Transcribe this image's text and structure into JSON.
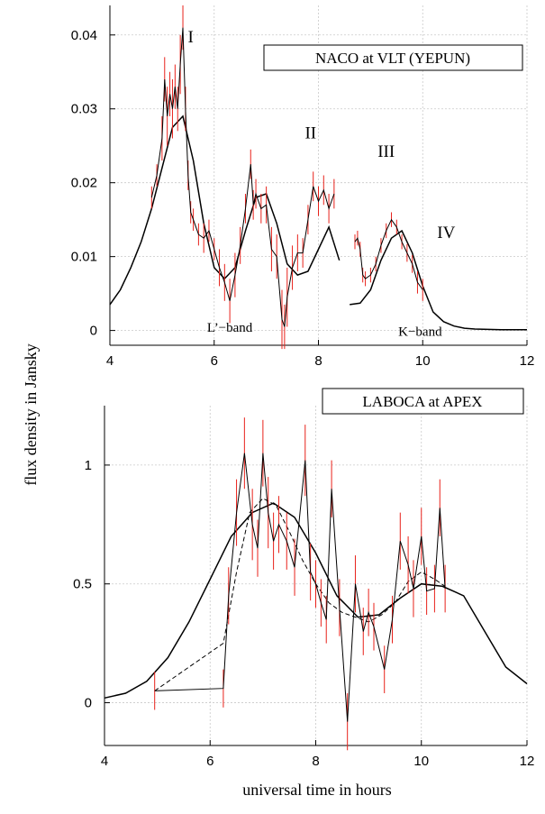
{
  "figure": {
    "ylabel": "flux density in Jansky",
    "xlabel": "universal time in hours"
  },
  "chart_data": [
    {
      "type": "line",
      "legend_box": "NACO at VLT (YEPUN)",
      "xlim": [
        4,
        12
      ],
      "ylim": [
        -0.002,
        0.044
      ],
      "xticks": [
        4,
        6,
        8,
        10,
        12
      ],
      "yticks": [
        0,
        0.01,
        0.02,
        0.03,
        0.04
      ],
      "xtick_labels": [
        "4",
        "6",
        "8",
        "10",
        "12"
      ],
      "ytick_labels": [
        "0",
        "0.01",
        "0.02",
        "0.03",
        "0.04"
      ],
      "grid": true,
      "annotations": [
        {
          "text": "I",
          "x": 5.55,
          "y": 0.039
        },
        {
          "text": "II",
          "x": 7.85,
          "y": 0.026
        },
        {
          "text": "III",
          "x": 9.3,
          "y": 0.0235
        },
        {
          "text": "IV",
          "x": 10.45,
          "y": 0.0125
        },
        {
          "text": "L’−band",
          "x": 6.3,
          "y": -0.0002
        },
        {
          "text": "K−band",
          "x": 9.95,
          "y": -0.0007
        }
      ],
      "series": [
        {
          "role": "model",
          "color": "#000000",
          "x": [
            4.0,
            4.2,
            4.4,
            4.6,
            4.8,
            5.0,
            5.2,
            5.4,
            5.6,
            5.8,
            6.0,
            6.2,
            6.4,
            6.6,
            6.8,
            7.0,
            7.2,
            7.4,
            7.6,
            7.8,
            8.0,
            8.2,
            8.4
          ],
          "y": [
            0.0035,
            0.0055,
            0.0085,
            0.012,
            0.0165,
            0.022,
            0.0275,
            0.029,
            0.023,
            0.0145,
            0.0085,
            0.007,
            0.0085,
            0.0135,
            0.018,
            0.0185,
            0.0145,
            0.009,
            0.0075,
            0.008,
            0.011,
            0.014,
            0.0095
          ]
        },
        {
          "role": "model",
          "color": "#000000",
          "x": [
            8.6,
            8.8,
            9.0,
            9.2,
            9.4,
            9.6,
            9.8,
            10.0,
            10.2,
            10.4,
            10.6,
            10.8,
            11.0,
            11.5,
            12.0
          ],
          "y": [
            0.0035,
            0.0037,
            0.0055,
            0.0095,
            0.0125,
            0.0135,
            0.0105,
            0.006,
            0.0025,
            0.0012,
            0.0006,
            0.0003,
            0.0002,
            0.0001,
            0.0001
          ]
        },
        {
          "role": "observed",
          "color": "#000000",
          "error_color": "#e8211a",
          "x": [
            4.8,
            4.9,
            5.0,
            5.05,
            5.1,
            5.15,
            5.2,
            5.25,
            5.3,
            5.35,
            5.4,
            5.45,
            5.5,
            5.55,
            5.6,
            5.7,
            5.8,
            5.9,
            6.0,
            6.1,
            6.2,
            6.3,
            6.4,
            6.5,
            6.6,
            6.7,
            6.75,
            6.8,
            6.9,
            7.0,
            7.1,
            7.2,
            7.3,
            7.35,
            7.4,
            7.5,
            7.6,
            7.7,
            7.8,
            7.9,
            8.0,
            8.1,
            8.2,
            8.3
          ],
          "y": [
            0.018,
            0.021,
            0.026,
            0.034,
            0.029,
            0.032,
            0.03,
            0.033,
            0.03,
            0.036,
            0.041,
            0.03,
            0.021,
            0.016,
            0.015,
            0.013,
            0.0125,
            0.0135,
            0.011,
            0.0085,
            0.0065,
            0.004,
            0.0075,
            0.0115,
            0.0165,
            0.0225,
            0.017,
            0.0185,
            0.0165,
            0.017,
            0.011,
            0.01,
            0.0015,
            0.0005,
            0.0045,
            0.0085,
            0.0105,
            0.0105,
            0.015,
            0.0195,
            0.0175,
            0.019,
            0.0165,
            0.0185
          ],
          "err": [
            0.0015,
            0.0015,
            0.003,
            0.003,
            0.004,
            0.003,
            0.004,
            0.003,
            0.003,
            0.004,
            0.003,
            0.003,
            0.002,
            0.0015,
            0.0015,
            0.0015,
            0.002,
            0.0015,
            0.0015,
            0.0025,
            0.0025,
            0.003,
            0.003,
            0.0025,
            0.002,
            0.002,
            0.002,
            0.002,
            0.002,
            0.0025,
            0.003,
            0.003,
            0.004,
            0.003,
            0.004,
            0.003,
            0.0025,
            0.002,
            0.002,
            0.002,
            0.002,
            0.002,
            0.002,
            0.002
          ]
        },
        {
          "role": "observed",
          "color": "#000000",
          "error_color": "#e8211a",
          "x": [
            8.7,
            8.75,
            8.8,
            8.85,
            8.9,
            9.0,
            9.1,
            9.2,
            9.3,
            9.4,
            9.5,
            9.6,
            9.7,
            9.8,
            9.9,
            10.0
          ],
          "y": [
            0.012,
            0.0125,
            0.011,
            0.0075,
            0.007,
            0.0075,
            0.009,
            0.0115,
            0.0135,
            0.015,
            0.014,
            0.012,
            0.0105,
            0.009,
            0.0065,
            0.0055
          ],
          "err": [
            0.001,
            0.001,
            0.001,
            0.001,
            0.001,
            0.001,
            0.001,
            0.001,
            0.001,
            0.001,
            0.001,
            0.001,
            0.0012,
            0.0012,
            0.0015,
            0.0015
          ]
        }
      ]
    },
    {
      "type": "line",
      "legend_box": "LABOCA at APEX",
      "xlim": [
        4,
        12
      ],
      "ylim": [
        -0.18,
        1.25
      ],
      "xticks": [
        4,
        6,
        8,
        10,
        12
      ],
      "yticks": [
        0,
        0.5,
        1
      ],
      "xtick_labels": [
        "4",
        "6",
        "8",
        "10",
        "12"
      ],
      "ytick_labels": [
        "0",
        "0.5",
        "1"
      ],
      "grid": true,
      "series": [
        {
          "role": "model",
          "color": "#000000",
          "dash": "solid",
          "x": [
            4.0,
            4.4,
            4.8,
            5.2,
            5.6,
            6.0,
            6.4,
            6.8,
            7.2,
            7.6,
            8.0,
            8.4,
            8.8,
            9.2,
            9.6,
            10.0,
            10.4,
            10.8,
            11.2,
            11.6,
            12.0
          ],
          "y": [
            0.02,
            0.04,
            0.09,
            0.19,
            0.34,
            0.52,
            0.7,
            0.8,
            0.84,
            0.78,
            0.63,
            0.45,
            0.36,
            0.37,
            0.44,
            0.5,
            0.49,
            0.45,
            0.3,
            0.15,
            0.08
          ]
        },
        {
          "role": "smoothed",
          "color": "#000000",
          "dash": "dashed",
          "x": [
            4.95,
            6.25,
            6.5,
            6.75,
            7.0,
            7.25,
            7.5,
            7.75,
            8.0,
            8.25,
            8.5,
            8.75,
            9.0,
            9.25,
            9.5,
            9.75,
            10.0,
            10.25,
            10.45
          ],
          "y": [
            0.05,
            0.25,
            0.55,
            0.8,
            0.86,
            0.83,
            0.72,
            0.6,
            0.5,
            0.42,
            0.38,
            0.36,
            0.34,
            0.37,
            0.42,
            0.51,
            0.55,
            0.52,
            0.49
          ]
        },
        {
          "role": "observed",
          "color": "#000000",
          "dash": "solid",
          "error_color": "#e8211a",
          "x": [
            4.95,
            6.25,
            6.35,
            6.5,
            6.65,
            6.8,
            6.9,
            7.0,
            7.1,
            7.2,
            7.3,
            7.45,
            7.6,
            7.8,
            7.9,
            8.0,
            8.1,
            8.2,
            8.3,
            8.45,
            8.6,
            8.75,
            8.9,
            9.0,
            9.1,
            9.3,
            9.45,
            9.6,
            9.75,
            9.85,
            10.0,
            10.1,
            10.25,
            10.35,
            10.45
          ],
          "y": [
            0.05,
            0.06,
            0.45,
            0.8,
            1.05,
            0.75,
            0.65,
            1.05,
            0.8,
            0.68,
            0.75,
            0.68,
            0.57,
            1.02,
            0.55,
            0.5,
            0.42,
            0.35,
            0.9,
            0.4,
            -0.08,
            0.5,
            0.3,
            0.38,
            0.32,
            0.14,
            0.35,
            0.68,
            0.58,
            0.48,
            0.7,
            0.47,
            0.48,
            0.82,
            0.48
          ],
          "err": [
            0.08,
            0.08,
            0.12,
            0.14,
            0.15,
            0.15,
            0.12,
            0.14,
            0.15,
            0.12,
            0.12,
            0.12,
            0.12,
            0.15,
            0.12,
            0.1,
            0.1,
            0.1,
            0.12,
            0.12,
            0.12,
            0.12,
            0.1,
            0.1,
            0.1,
            0.1,
            0.1,
            0.12,
            0.12,
            0.12,
            0.12,
            0.1,
            0.1,
            0.12,
            0.1
          ]
        }
      ]
    }
  ]
}
